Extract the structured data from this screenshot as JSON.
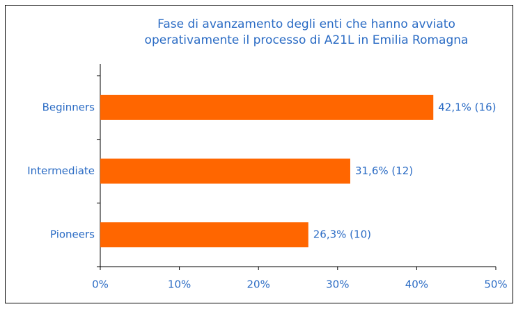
{
  "chart_data": {
    "type": "barh",
    "title": [
      "Fase di avanzamento degli enti che hanno avviato",
      "operativamente il processo di A21L in Emilia Romagna"
    ],
    "categories": [
      "Beginners",
      "Intermediate",
      "Pioneers"
    ],
    "values": [
      42.1,
      31.6,
      26.3
    ],
    "value_labels": [
      "42,1% (16)",
      "31,6% (12)",
      "26,3% (10)"
    ],
    "color": "#ff6600",
    "xlim": [
      0,
      50
    ],
    "xticks": [
      {
        "value": 0,
        "label": "0%"
      },
      {
        "value": 10,
        "label": "10%"
      },
      {
        "value": 20,
        "label": "20%"
      },
      {
        "value": 30,
        "label": "30%"
      },
      {
        "value": 40,
        "label": "40%"
      },
      {
        "value": 50,
        "label": "50%"
      }
    ]
  }
}
